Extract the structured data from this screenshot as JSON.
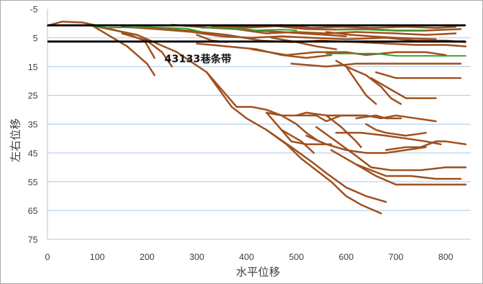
{
  "chart_data": {
    "type": "line",
    "xlabel": "水平位移",
    "ylabel": "左右位移",
    "xlim": [
      0,
      850
    ],
    "ylim": [
      -5,
      75
    ],
    "y_inverted": true,
    "grid": "horizontal",
    "legend": "none",
    "x_ticks": [
      "0",
      "100",
      "200",
      "300",
      "400",
      "500",
      "600",
      "700",
      "800"
    ],
    "y_ticks": [
      "-5",
      "5",
      "15",
      "25",
      "35",
      "45",
      "55",
      "65",
      "75"
    ],
    "annotation": {
      "text": "43133巷条带",
      "x": 235,
      "y": 13.5
    },
    "reference_lines": [
      {
        "y": 0.7,
        "x": [
          0,
          840
        ]
      },
      {
        "y": 6.3,
        "x": [
          0,
          840
        ]
      }
    ],
    "colors": {
      "crack": "#a0501e",
      "green": "#2ca02c",
      "ref": "#000000",
      "grid": "#a8c6e8"
    },
    "series": [
      {
        "color": "crack",
        "points": [
          [
            0,
            0.8
          ],
          [
            30,
            -0.6
          ],
          [
            70,
            -0.3
          ],
          [
            95,
            0.6
          ],
          [
            150,
            3
          ],
          [
            195,
            6
          ],
          [
            205,
            9
          ],
          [
            215,
            12
          ]
        ]
      },
      {
        "color": "crack",
        "points": [
          [
            90,
            0.8
          ],
          [
            160,
            8
          ],
          [
            200,
            14
          ],
          [
            215,
            18
          ]
        ]
      },
      {
        "color": "crack",
        "points": [
          [
            150,
            3.5
          ],
          [
            200,
            6
          ],
          [
            230,
            10
          ],
          [
            250,
            15
          ]
        ]
      },
      {
        "color": "crack",
        "points": [
          [
            90,
            0.8
          ],
          [
            180,
            4
          ],
          [
            260,
            10
          ],
          [
            320,
            17
          ],
          [
            350,
            23
          ],
          [
            380,
            29
          ],
          [
            410,
            29
          ],
          [
            440,
            30
          ],
          [
            470,
            32
          ],
          [
            500,
            35
          ],
          [
            520,
            38
          ],
          [
            545,
            41
          ]
        ]
      },
      {
        "color": "crack",
        "points": [
          [
            320,
            17
          ],
          [
            370,
            29
          ],
          [
            400,
            33
          ],
          [
            440,
            37
          ],
          [
            480,
            42
          ],
          [
            510,
            47
          ],
          [
            540,
            51
          ],
          [
            570,
            55
          ],
          [
            600,
            60
          ],
          [
            630,
            63
          ],
          [
            670,
            66
          ]
        ]
      },
      {
        "color": "crack",
        "points": [
          [
            440,
            37
          ],
          [
            490,
            43
          ],
          [
            530,
            48
          ],
          [
            560,
            52
          ],
          [
            600,
            57
          ],
          [
            640,
            60
          ],
          [
            680,
            62
          ]
        ]
      },
      {
        "color": "crack",
        "points": [
          [
            440,
            31
          ],
          [
            470,
            37
          ],
          [
            510,
            41
          ],
          [
            535,
            45
          ]
        ]
      },
      {
        "color": "crack",
        "points": [
          [
            470,
            37
          ],
          [
            490,
            41
          ],
          [
            520,
            42
          ],
          [
            570,
            42
          ]
        ]
      },
      {
        "color": "crack",
        "points": [
          [
            440,
            31
          ],
          [
            470,
            32
          ],
          [
            500,
            32
          ],
          [
            540,
            32
          ],
          [
            560,
            34
          ],
          [
            590,
            32
          ],
          [
            640,
            32
          ],
          [
            670,
            33
          ],
          [
            700,
            32
          ],
          [
            740,
            33
          ],
          [
            780,
            34
          ]
        ]
      },
      {
        "color": "crack",
        "points": [
          [
            500,
            32
          ],
          [
            520,
            31
          ],
          [
            560,
            32
          ],
          [
            600,
            32
          ],
          [
            630,
            32
          ]
        ]
      },
      {
        "color": "crack",
        "points": [
          [
            520,
            39
          ],
          [
            560,
            42
          ],
          [
            600,
            44
          ],
          [
            640,
            45
          ],
          [
            680,
            45
          ],
          [
            720,
            44
          ],
          [
            760,
            43
          ]
        ]
      },
      {
        "color": "crack",
        "points": [
          [
            540,
            36
          ],
          [
            580,
            41
          ],
          [
            620,
            46
          ],
          [
            650,
            50
          ],
          [
            690,
            51
          ],
          [
            750,
            51
          ],
          [
            800,
            50
          ],
          [
            840,
            50
          ]
        ]
      },
      {
        "color": "crack",
        "points": [
          [
            570,
            44
          ],
          [
            620,
            49
          ],
          [
            660,
            53
          ],
          [
            700,
            56
          ],
          [
            760,
            56
          ],
          [
            800,
            56
          ],
          [
            840,
            56
          ]
        ]
      },
      {
        "color": "crack",
        "points": [
          [
            620,
            49
          ],
          [
            680,
            53
          ],
          [
            730,
            53
          ],
          [
            780,
            54
          ],
          [
            830,
            54
          ]
        ]
      },
      {
        "color": "crack",
        "points": [
          [
            580,
            38
          ],
          [
            630,
            38
          ],
          [
            680,
            39
          ],
          [
            720,
            40
          ],
          [
            760,
            41
          ],
          [
            790,
            42
          ]
        ]
      },
      {
        "color": "crack",
        "points": [
          [
            680,
            44
          ],
          [
            720,
            43
          ],
          [
            750,
            43
          ],
          [
            780,
            41
          ],
          [
            800,
            41
          ],
          [
            840,
            42
          ]
        ]
      },
      {
        "color": "crack",
        "points": [
          [
            640,
            35
          ],
          [
            660,
            37
          ],
          [
            680,
            38
          ],
          [
            720,
            39
          ],
          [
            760,
            38
          ]
        ]
      },
      {
        "color": "crack",
        "points": [
          [
            620,
            33
          ],
          [
            660,
            32
          ],
          [
            680,
            33
          ],
          [
            710,
            33
          ]
        ]
      },
      {
        "color": "crack",
        "points": [
          [
            560,
            32
          ],
          [
            590,
            36
          ],
          [
            620,
            41
          ],
          [
            630,
            43
          ]
        ]
      },
      {
        "color": "crack",
        "points": [
          [
            580,
            13
          ],
          [
            600,
            15
          ],
          [
            620,
            20
          ],
          [
            640,
            25
          ],
          [
            660,
            28
          ]
        ]
      },
      {
        "color": "crack",
        "points": [
          [
            600,
            15
          ],
          [
            640,
            18
          ],
          [
            670,
            22
          ],
          [
            690,
            26
          ],
          [
            710,
            28
          ]
        ]
      },
      {
        "color": "crack",
        "points": [
          [
            650,
            19
          ],
          [
            690,
            23
          ],
          [
            720,
            26
          ],
          [
            780,
            26
          ]
        ]
      },
      {
        "color": "crack",
        "points": [
          [
            660,
            17
          ],
          [
            700,
            19
          ],
          [
            760,
            19
          ],
          [
            830,
            19
          ]
        ]
      },
      {
        "color": "crack",
        "points": [
          [
            490,
            14
          ],
          [
            560,
            15
          ],
          [
            620,
            14
          ],
          [
            680,
            14
          ],
          [
            740,
            14
          ],
          [
            830,
            14
          ]
        ]
      },
      {
        "color": "crack",
        "points": [
          [
            410,
            9
          ],
          [
            480,
            11
          ],
          [
            540,
            10
          ],
          [
            600,
            10
          ],
          [
            640,
            11
          ],
          [
            700,
            10
          ],
          [
            760,
            10
          ],
          [
            800,
            11
          ]
        ]
      },
      {
        "color": "crack",
        "points": [
          [
            300,
            7
          ],
          [
            360,
            8
          ],
          [
            420,
            9
          ],
          [
            470,
            11
          ],
          [
            520,
            12
          ],
          [
            570,
            11
          ]
        ]
      },
      {
        "color": "crack",
        "points": [
          [
            150,
            1.2
          ],
          [
            220,
            2
          ],
          [
            290,
            3
          ],
          [
            350,
            4.5
          ],
          [
            410,
            5
          ],
          [
            470,
            4.5
          ],
          [
            530,
            5
          ],
          [
            600,
            5.5
          ],
          [
            680,
            5
          ],
          [
            740,
            6
          ],
          [
            800,
            6
          ],
          [
            840,
            6.5
          ]
        ]
      },
      {
        "color": "crack",
        "points": [
          [
            200,
            1.5
          ],
          [
            280,
            2.5
          ],
          [
            360,
            4
          ],
          [
            430,
            6
          ],
          [
            490,
            6.5
          ],
          [
            550,
            6
          ],
          [
            620,
            6.5
          ],
          [
            680,
            7
          ],
          [
            740,
            7.5
          ],
          [
            800,
            7.5
          ],
          [
            840,
            8
          ]
        ]
      },
      {
        "color": "crack",
        "points": [
          [
            250,
            0.5
          ],
          [
            320,
            1.5
          ],
          [
            380,
            2
          ],
          [
            440,
            3.5
          ],
          [
            500,
            3
          ],
          [
            560,
            3.5
          ],
          [
            620,
            3
          ],
          [
            700,
            3.5
          ],
          [
            760,
            4
          ],
          [
            820,
            3.5
          ]
        ]
      },
      {
        "color": "crack",
        "points": [
          [
            330,
            1
          ],
          [
            400,
            1.5
          ],
          [
            460,
            1
          ],
          [
            520,
            2
          ],
          [
            580,
            2.2
          ],
          [
            640,
            2
          ],
          [
            700,
            2.5
          ],
          [
            760,
            2.5
          ],
          [
            830,
            2
          ]
        ]
      },
      {
        "color": "crack",
        "points": [
          [
            350,
            0.8
          ],
          [
            410,
            1.2
          ],
          [
            470,
            0.6
          ],
          [
            530,
            1.6
          ],
          [
            590,
            1.2
          ],
          [
            650,
            1.6
          ],
          [
            720,
            1.2
          ],
          [
            780,
            1.6
          ],
          [
            820,
            1.2
          ]
        ]
      },
      {
        "color": "crack",
        "points": [
          [
            420,
            2.5
          ],
          [
            470,
            3
          ],
          [
            510,
            3.5
          ],
          [
            560,
            4
          ],
          [
            600,
            4.5
          ]
        ]
      },
      {
        "color": "crack",
        "points": [
          [
            560,
            3
          ],
          [
            610,
            4
          ],
          [
            650,
            4.5
          ],
          [
            700,
            5
          ],
          [
            780,
            5.5
          ]
        ]
      },
      {
        "color": "crack",
        "points": [
          [
            450,
            5
          ],
          [
            500,
            6.5
          ],
          [
            540,
            8
          ],
          [
            580,
            9
          ]
        ]
      },
      {
        "color": "crack",
        "points": [
          [
            300,
            4
          ],
          [
            330,
            6
          ],
          [
            360,
            6.5
          ]
        ]
      },
      {
        "color": "green",
        "points": [
          [
            0,
            0.7
          ],
          [
            80,
            0.7
          ],
          [
            120,
            1.5
          ],
          [
            200,
            1.3
          ],
          [
            280,
            1.8
          ],
          [
            310,
            3
          ]
        ]
      },
      {
        "color": "green",
        "points": [
          [
            310,
            1.6
          ],
          [
            360,
            1.5
          ],
          [
            420,
            2.4
          ],
          [
            470,
            2.2
          ],
          [
            500,
            2.4
          ]
        ]
      },
      {
        "color": "green",
        "points": [
          [
            560,
            10.5
          ],
          [
            620,
            10.5
          ],
          [
            660,
            10.5
          ],
          [
            700,
            11.3
          ],
          [
            840,
            11.3
          ]
        ]
      },
      {
        "color": "green",
        "points": [
          [
            580,
            2.2
          ],
          [
            640,
            2.2
          ],
          [
            700,
            2.6
          ],
          [
            760,
            2.6
          ]
        ]
      }
    ]
  }
}
